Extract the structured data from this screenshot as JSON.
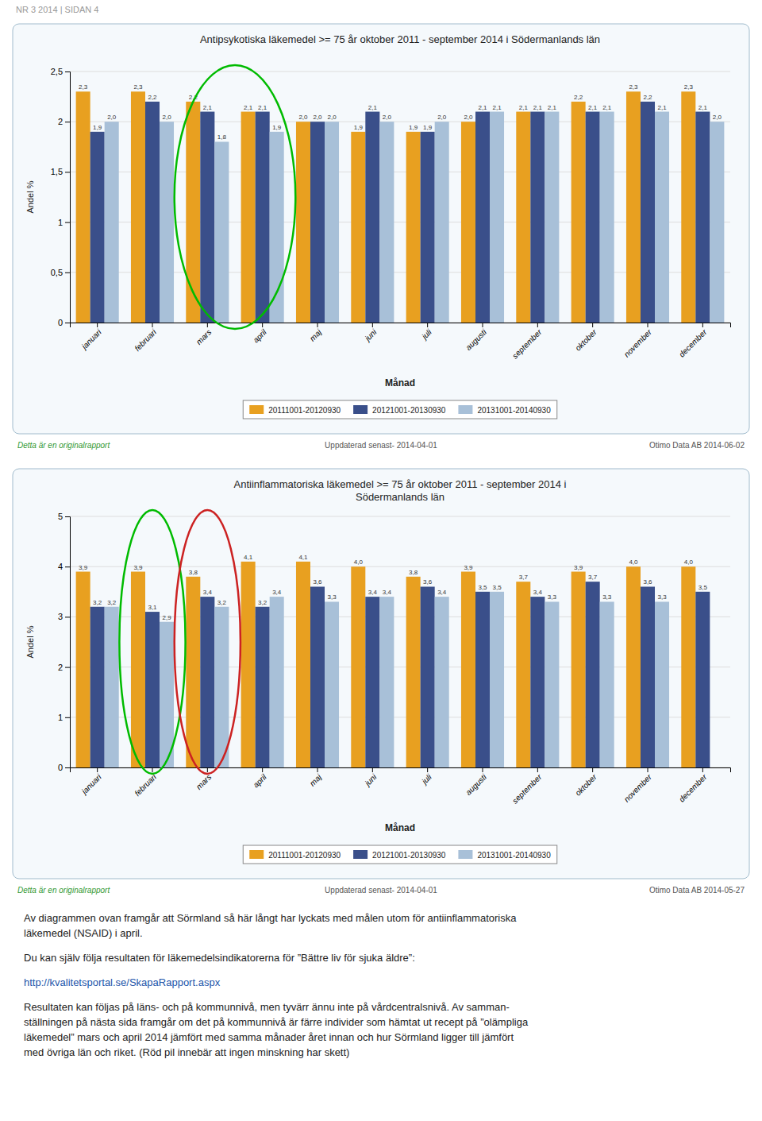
{
  "page_header": "NR 3 2014 | SIDAN 4",
  "chart_data": [
    {
      "type": "bar",
      "title": "Antipsykotiska läkemedel >= 75 år oktober 2011 - september 2014 i Södermanlands län",
      "xlabel": "Månad",
      "ylabel": "Andel %",
      "categories": [
        "januari",
        "februari",
        "mars",
        "april",
        "maj",
        "juni",
        "juli",
        "augusti",
        "september",
        "oktober",
        "november",
        "december"
      ],
      "series": [
        {
          "name": "20111001-20120930",
          "color": "#E8A020",
          "values": [
            2.3,
            2.3,
            2.2,
            2.1,
            2.0,
            1.9,
            1.9,
            2.0,
            2.1,
            2.2,
            2.3,
            2.3
          ],
          "value_labels": [
            "2,3",
            "2,3",
            "2,2",
            "2,1",
            "2,0",
            "1,9",
            "1,9",
            "2,0",
            "2,1",
            "2,2",
            "2,3",
            "2,3"
          ]
        },
        {
          "name": "20121001-20130930",
          "color": "#3A4F8A",
          "values": [
            1.9,
            2.2,
            2.1,
            2.1,
            2.0,
            2.1,
            1.9,
            2.1,
            2.1,
            2.1,
            2.2,
            2.1
          ],
          "value_labels": [
            "1,9",
            "2,2",
            "2,1",
            "2,1",
            "2,0",
            "2,1",
            "1,9",
            "2,1",
            "2,1",
            "2,1",
            "2,2",
            "2,1"
          ]
        },
        {
          "name": "20131001-20140930",
          "color": "#A8C0D8",
          "values": [
            2.0,
            2.0,
            1.8,
            1.9,
            2.0,
            2.0,
            2.0,
            2.1,
            2.1,
            2.1,
            2.1,
            2.0
          ],
          "value_labels": [
            "2,0",
            "2,0",
            "1,8",
            "1,9",
            "2,0",
            "2,0",
            "2,0",
            "2,1",
            "2,1",
            "2,1",
            "2,1",
            "2,0"
          ]
        }
      ],
      "ylim": [
        0,
        2.5
      ],
      "yticks": [
        0,
        {
          "value": 0.5,
          "label": "0,5"
        },
        1,
        {
          "value": 1.5,
          "label": "1,5"
        },
        2,
        {
          "value": 2.5,
          "label": "2,5"
        }
      ],
      "grid": true,
      "legend": "bottom",
      "data_labels": true,
      "annotations": [
        {
          "type": "text",
          "text": "Detta är en originalrapport",
          "color": "#339933"
        },
        {
          "type": "text",
          "text": "Uppdaterad senast- 2014-04-01"
        },
        {
          "type": "text",
          "text": "Otimo Data AB 2014-06-02"
        },
        {
          "type": "ellipse",
          "color": "#00BB00",
          "categories": [
            "mars",
            "april"
          ]
        }
      ]
    },
    {
      "type": "bar",
      "title": "Antiinflammatoriska läkemedel >= 75 år oktober 2011 - september 2014 i\nSödermanlands län",
      "xlabel": "Månad",
      "ylabel": "Andel %",
      "categories": [
        "januari",
        "februari",
        "mars",
        "april",
        "maj",
        "juni",
        "juli",
        "augusti",
        "september",
        "oktober",
        "november",
        "december"
      ],
      "series": [
        {
          "name": "20111001-20120930",
          "color": "#E8A020",
          "values": [
            3.9,
            3.9,
            3.8,
            4.1,
            4.1,
            4.0,
            3.8,
            3.9,
            3.7,
            3.9,
            4.0,
            4.0
          ],
          "value_labels": [
            "3,9",
            "3,9",
            "3,8",
            "4,1",
            "4,1",
            "4,0",
            "3,8",
            "3,9",
            "3,7",
            "3,9",
            "4,0",
            "4,0"
          ]
        },
        {
          "name": "20121001-20130930",
          "color": "#3A4F8A",
          "values": [
            3.2,
            3.1,
            3.4,
            3.2,
            3.6,
            3.4,
            3.6,
            3.5,
            3.4,
            3.7,
            3.6,
            3.5
          ],
          "value_labels": [
            "3,2",
            "3,1",
            "3,4",
            "3,2",
            "3,6",
            "3,4",
            "3,6",
            "3,5",
            "3,4",
            "3,7",
            "3,6",
            "3,5"
          ]
        },
        {
          "name": "20131001-20140930",
          "color": "#A8C0D8",
          "values": [
            3.2,
            2.9,
            3.2,
            3.4,
            3.3,
            3.4,
            3.4,
            3.5,
            3.3,
            3.3,
            3.3,
            null
          ],
          "value_labels": [
            "3,2",
            "2,9",
            "3,2",
            "3,4",
            "3,3",
            "3,4",
            "3,4",
            "3,5",
            "3,3",
            "3,3",
            "3,3",
            null
          ]
        }
      ],
      "ylim": [
        0,
        5
      ],
      "yticks": [
        0,
        1,
        2,
        3,
        4,
        5
      ],
      "grid": true,
      "legend": "bottom",
      "data_labels": true,
      "annotations": [
        {
          "type": "text",
          "text": "Detta är en originalrapport",
          "color": "#339933"
        },
        {
          "type": "text",
          "text": "Uppdaterad senast- 2014-04-01"
        },
        {
          "type": "text",
          "text": "Otimo Data AB 2014-05-27"
        },
        {
          "type": "ellipse",
          "color": "#00BB00",
          "categories": [
            "februari"
          ]
        },
        {
          "type": "ellipse",
          "color": "#CC2222",
          "categories": [
            "mars"
          ]
        }
      ]
    }
  ],
  "body_paragraphs": [
    {
      "text": "Av diagrammen ovan framgår att Sörmland så här långt har lyckats med målen utom för antiinflammatoriska\nläkemedel (NSAID) i april.",
      "color": "#222222"
    },
    {
      "text": "Du kan själv följa resultaten för läkemedelsindikatorerna för ”Bättre liv för sjuka äldre”:",
      "color": "#222222"
    },
    {
      "text": "http://kvalitetsportal.se/SkapaRapport.aspx",
      "color": "#2255AA"
    },
    {
      "text": "Resultaten kan följas på läns- och på kommunnivå, men tyvärr ännu inte på vårdcentralsnivå. Av samman-\nställningen på nästa sida framgår om det på kommunnivå är färre individer som hämtat ut recept på ”olämpliga\nläkemedel” mars och april 2014 jämfört med samma månader året innan och hur Sörmland ligger till jämfört\nmed övriga län och riket. (Röd pil innebär att ingen minskning har skett)",
      "color": "#222222"
    }
  ]
}
